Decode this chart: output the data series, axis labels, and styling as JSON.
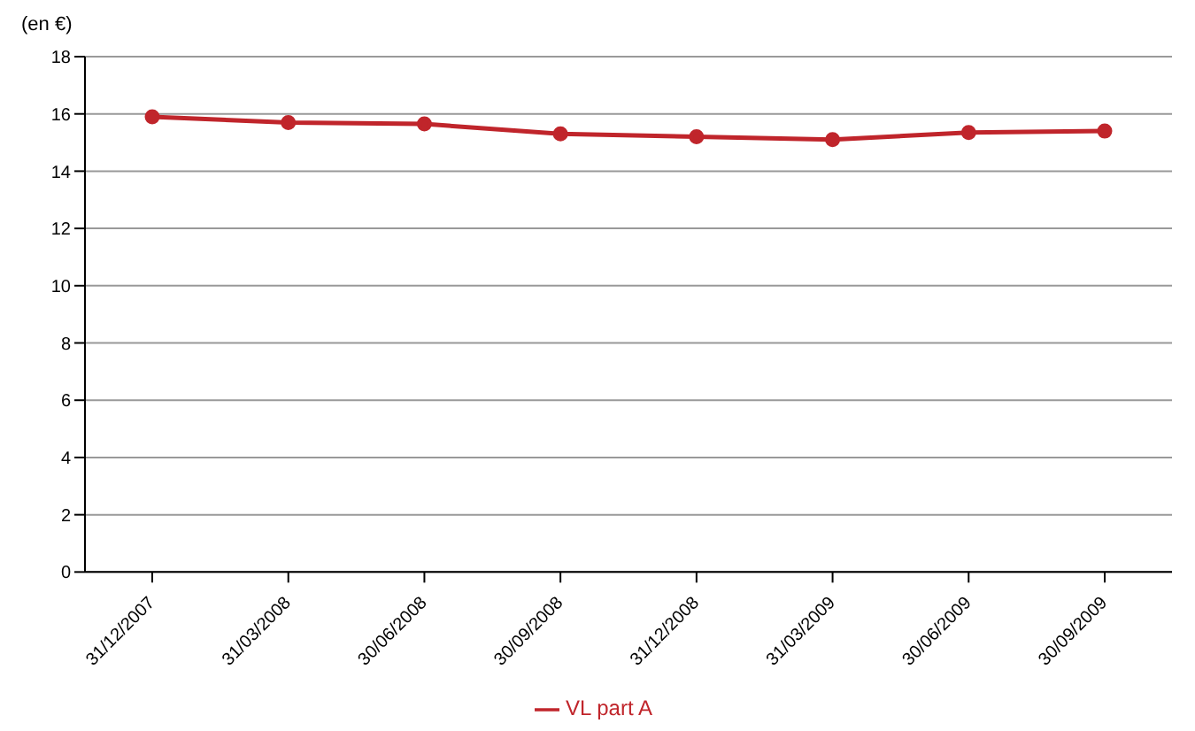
{
  "chart_data": {
    "type": "line",
    "ylabel": "(en €)",
    "categories": [
      "31/12/2007",
      "31/03/2008",
      "30/06/2008",
      "30/09/2008",
      "31/12/2008",
      "31/03/2009",
      "30/06/2009",
      "30/09/2009"
    ],
    "series": [
      {
        "name": "VL part A",
        "color": "#c0252b",
        "values": [
          15.9,
          15.7,
          15.65,
          15.3,
          15.2,
          15.1,
          15.35,
          15.4
        ]
      }
    ],
    "ylim": [
      0,
      18
    ],
    "yticks": [
      0,
      2,
      4,
      6,
      8,
      10,
      12,
      14,
      16,
      18
    ],
    "grid": "y",
    "legend": "bottom",
    "marker": "circle"
  }
}
